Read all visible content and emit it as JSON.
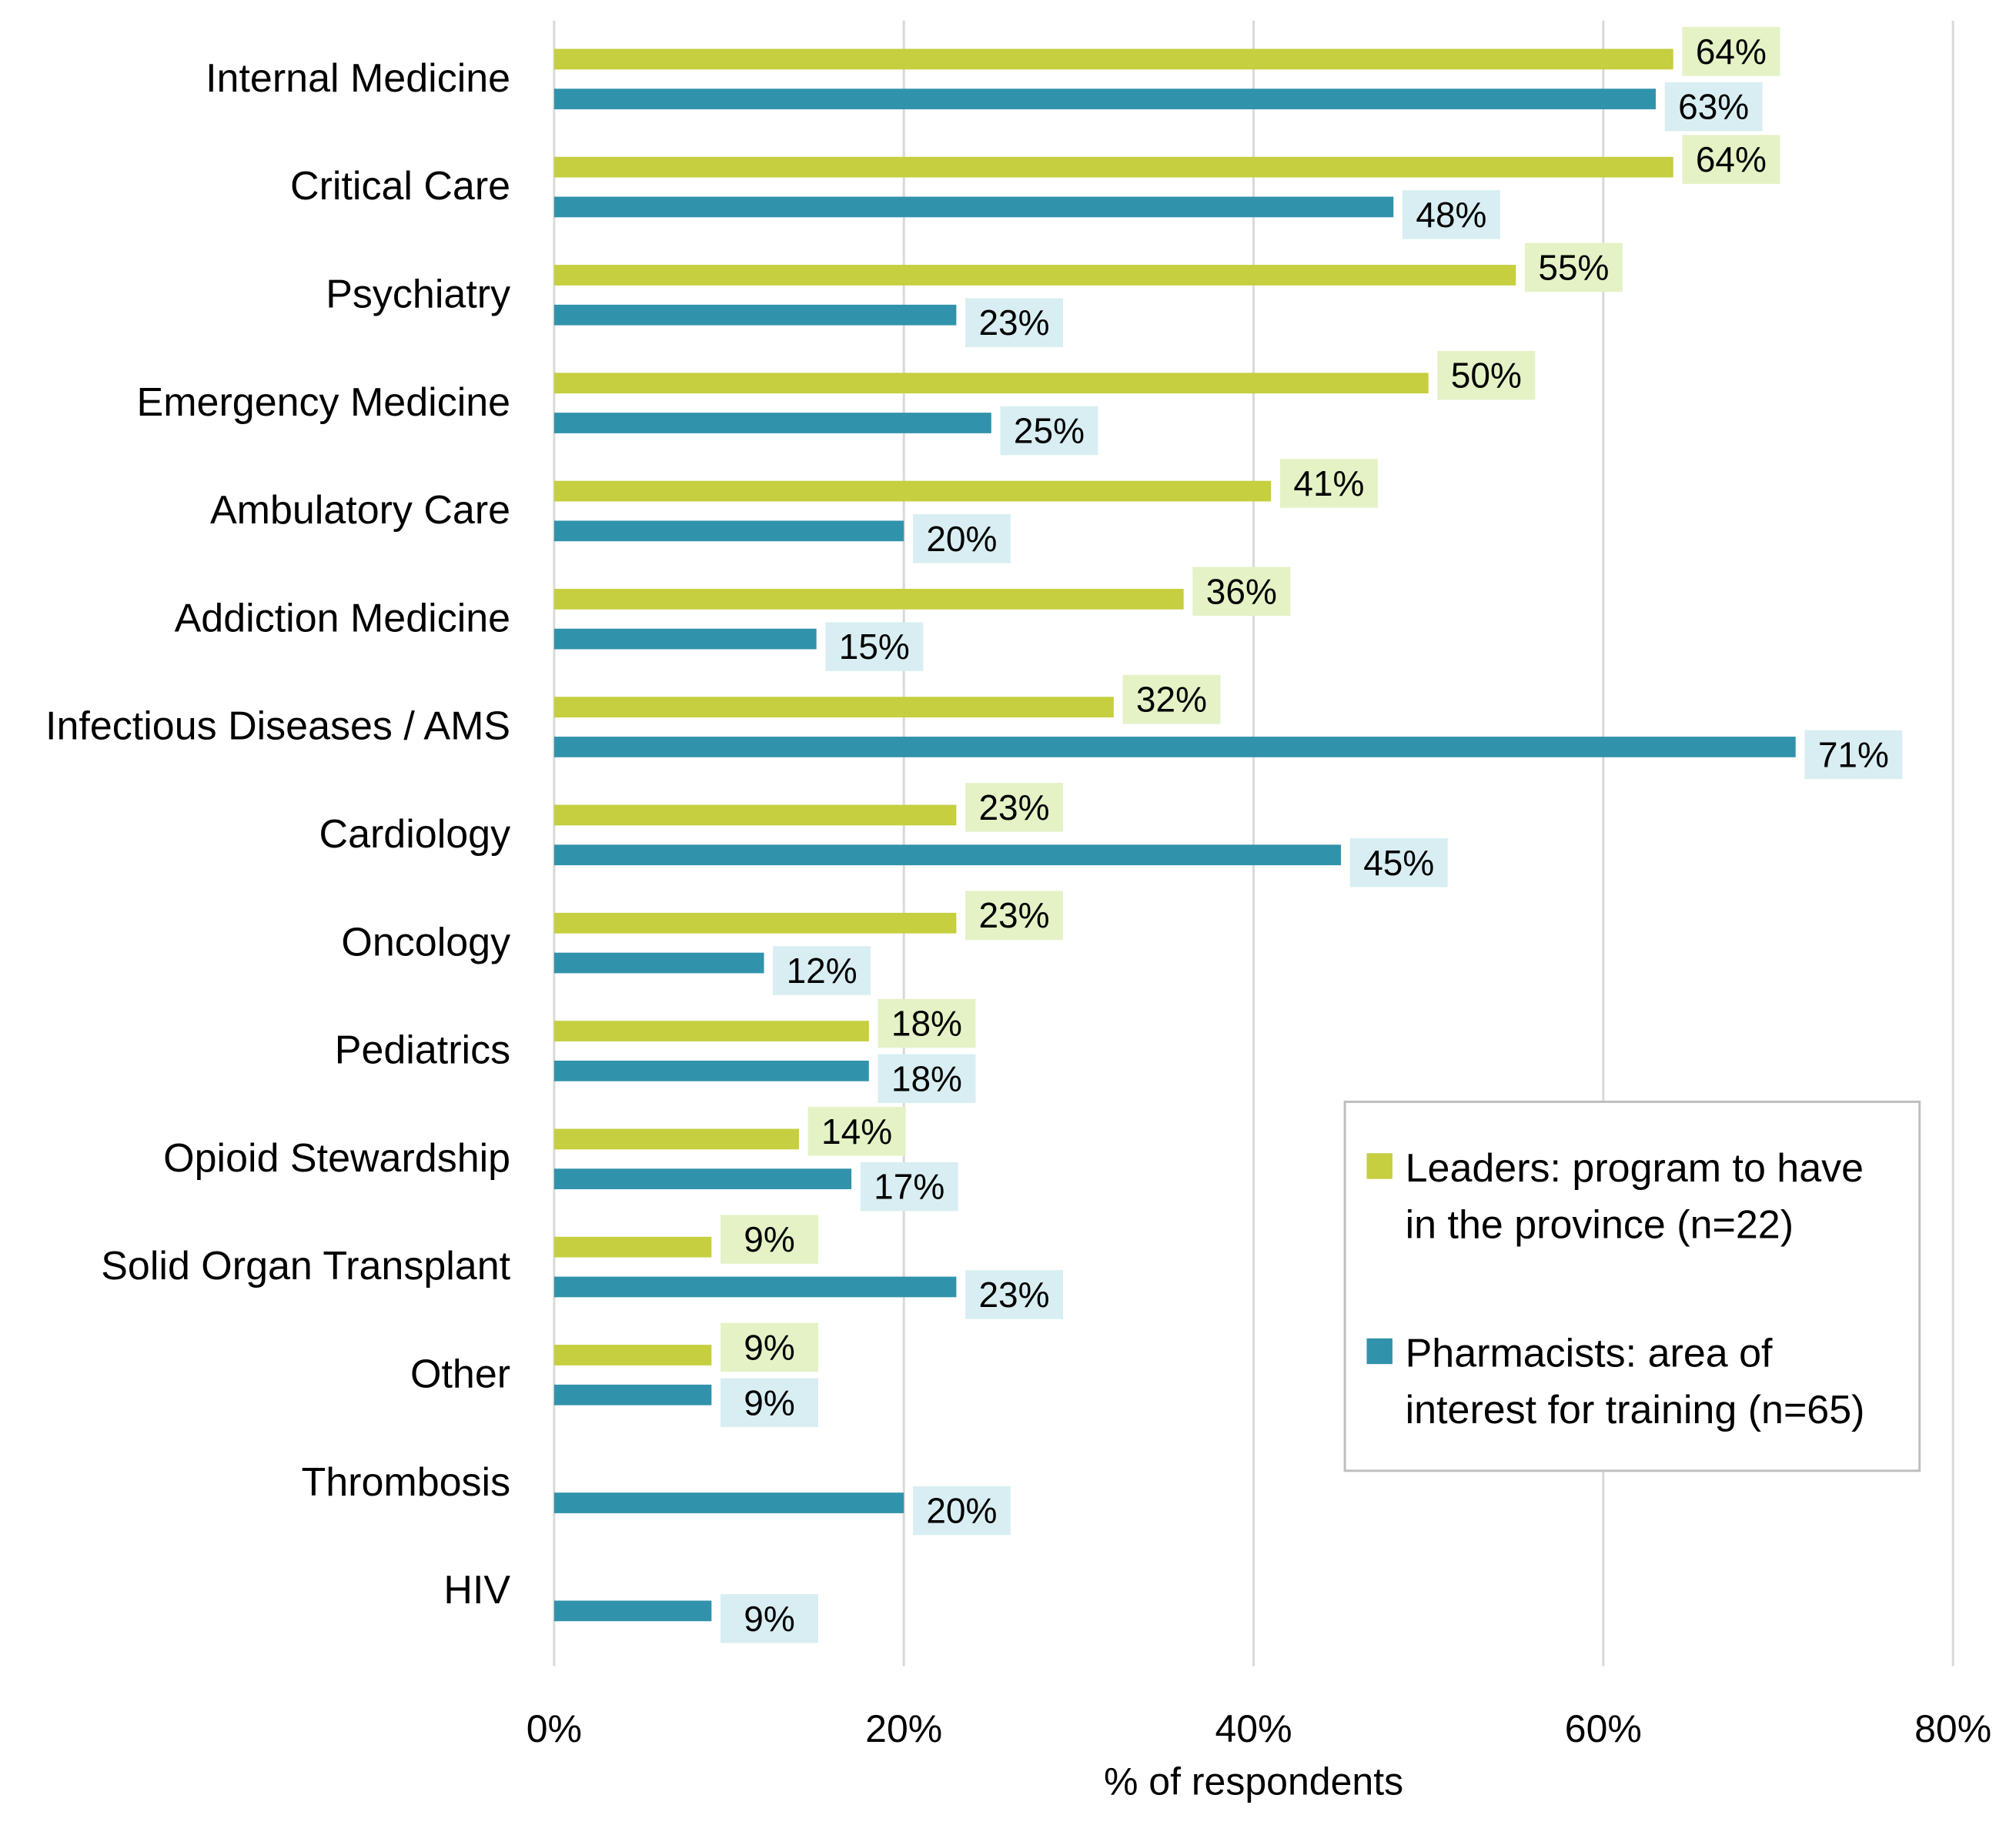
{
  "chart_data": {
    "type": "bar",
    "orientation": "horizontal",
    "title": "",
    "xlabel": "% of respondents",
    "ylabel": "",
    "xlim": [
      0,
      80
    ],
    "x_ticks": [
      "0%",
      "20%",
      "40%",
      "60%",
      "80%"
    ],
    "x_tick_values": [
      0,
      20,
      40,
      60,
      80
    ],
    "grid": "vertical",
    "legend_position": "bottom-right",
    "categories": [
      "Internal Medicine",
      "Critical Care",
      "Psychiatry",
      "Emergency Medicine",
      "Ambulatory Care",
      "Addiction Medicine",
      "Infectious Diseases / AMS",
      "Cardiology",
      "Oncology",
      "Pediatrics",
      "Opioid Stewardship",
      "Solid Organ Transplant",
      "Other",
      "Thrombosis",
      "HIV"
    ],
    "series": [
      {
        "name": "Leaders: program to have in the province (n=22)",
        "legend_lines": [
          "Leaders: program to have",
          "in the province (n=22)"
        ],
        "color": "#c5cf3f",
        "label_bg": "#e4f2c6",
        "values": [
          64,
          64,
          55,
          50,
          41,
          36,
          32,
          23,
          23,
          18,
          14,
          9,
          9,
          null,
          null
        ],
        "labels": [
          "64%",
          "64%",
          "55%",
          "50%",
          "41%",
          "36%",
          "32%",
          "23%",
          "23%",
          "18%",
          "14%",
          "9%",
          "9%",
          null,
          null
        ]
      },
      {
        "name": "Pharmacists: area of interest for training (n=65)",
        "legend_lines": [
          "Pharmacists: area of",
          "interest for training (n=65)"
        ],
        "color": "#3192ab",
        "label_bg": "#d8eef2",
        "values": [
          63,
          48,
          23,
          25,
          20,
          15,
          71,
          45,
          12,
          18,
          17,
          23,
          9,
          20,
          9
        ],
        "labels": [
          "63%",
          "48%",
          "23%",
          "25%",
          "20%",
          "15%",
          "71%",
          "45%",
          "12%",
          "18%",
          "17%",
          "23%",
          "9%",
          "20%",
          "9%"
        ]
      }
    ]
  }
}
